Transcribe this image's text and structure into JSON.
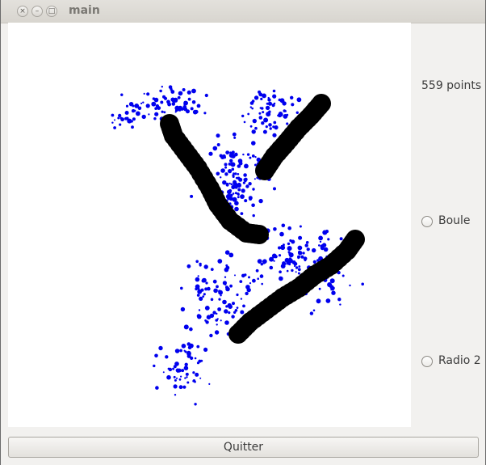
{
  "window": {
    "title": "main",
    "close_glyph": "×",
    "minimize_glyph": "–",
    "maximize_glyph": "□"
  },
  "sidebar": {
    "points_label": "559 points",
    "options": [
      {
        "label": "Boule",
        "selected": false
      },
      {
        "label": "Radio 2",
        "selected": false
      }
    ]
  },
  "footer": {
    "quit_label": "Quitter"
  },
  "colors": {
    "points": "#0000ee",
    "strokes": "#000000"
  }
}
